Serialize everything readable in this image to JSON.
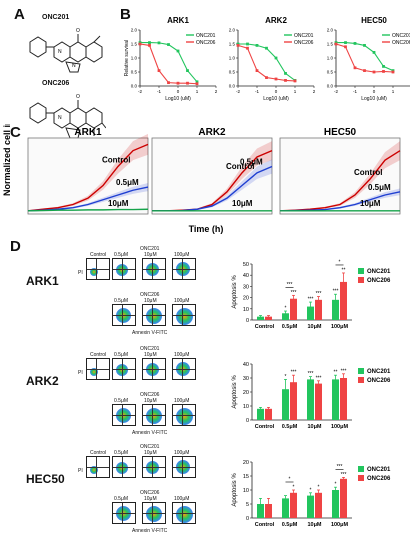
{
  "panel_letters": {
    "a": "A",
    "b": "B",
    "c": "C",
    "d": "D"
  },
  "compounds": {
    "c1": "ONC201",
    "c2": "ONC206"
  },
  "colors": {
    "onc201": "#22c55e",
    "onc206": "#ef4444",
    "control": "#cc0000",
    "dose05": "#1f3fd1",
    "dose10": "#16a34a"
  },
  "chart_data": [
    {
      "type": "line",
      "panel": "B",
      "title": "ARK1",
      "ylabel": "Relative survival",
      "xlabel": "Log10 (uM)",
      "xlim": [
        -2,
        2
      ],
      "ylim": [
        0,
        2
      ],
      "xticks": [
        "-2",
        "-1",
        "0",
        "1",
        "2"
      ],
      "yticks": [
        "0.0",
        "0.5",
        "1.0",
        "1.5",
        "2.0"
      ],
      "legend": [
        "ONC201",
        "ONC206"
      ],
      "series": [
        {
          "name": "ONC201",
          "x": [
            -2,
            -1.5,
            -1,
            -0.5,
            0,
            0.5,
            1
          ],
          "y": [
            1.55,
            1.55,
            1.54,
            1.48,
            1.25,
            0.55,
            0.15
          ]
        },
        {
          "name": "ONC206",
          "x": [
            -2,
            -1.5,
            -1,
            -0.5,
            0,
            0.5,
            1
          ],
          "y": [
            1.5,
            1.45,
            0.55,
            0.12,
            0.1,
            0.1,
            0.08
          ]
        }
      ]
    },
    {
      "type": "line",
      "panel": "B",
      "title": "ARK2",
      "ylabel": "",
      "xlabel": "Log10 (uM)",
      "xlim": [
        -2,
        2
      ],
      "ylim": [
        0,
        2
      ],
      "xticks": [
        "-2",
        "-1",
        "0",
        "1",
        "2"
      ],
      "yticks": [
        "0.0",
        "0.5",
        "1.0",
        "1.5",
        "2.0"
      ],
      "legend": [
        "ONC201",
        "ONC206"
      ],
      "series": [
        {
          "name": "ONC201",
          "x": [
            -2,
            -1.5,
            -1,
            -0.5,
            0,
            0.5,
            1
          ],
          "y": [
            1.5,
            1.5,
            1.45,
            1.35,
            1.0,
            0.45,
            0.2
          ]
        },
        {
          "name": "ONC206",
          "x": [
            -2,
            -1.5,
            -1,
            -0.5,
            0,
            0.5,
            1
          ],
          "y": [
            1.45,
            1.35,
            0.55,
            0.3,
            0.25,
            0.2,
            0.18
          ]
        }
      ]
    },
    {
      "type": "line",
      "panel": "B",
      "title": "HEC50",
      "ylabel": "",
      "xlabel": "Log10 (uM)",
      "xlim": [
        -2,
        2
      ],
      "ylim": [
        0,
        2
      ],
      "xticks": [
        "-2",
        "-1",
        "0",
        "1",
        "2"
      ],
      "yticks": [
        "0.0",
        "0.5",
        "1.0",
        "1.5",
        "2.0"
      ],
      "legend": [
        "ONC201",
        "ONC206"
      ],
      "series": [
        {
          "name": "ONC201",
          "x": [
            -2,
            -1.5,
            -1,
            -0.5,
            0,
            0.5,
            1
          ],
          "y": [
            1.55,
            1.55,
            1.52,
            1.45,
            1.2,
            0.7,
            0.55
          ]
        },
        {
          "name": "ONC206",
          "x": [
            -2,
            -1.5,
            -1,
            -0.5,
            0,
            0.5,
            1
          ],
          "y": [
            1.5,
            1.4,
            0.65,
            0.55,
            0.5,
            0.52,
            0.5
          ]
        }
      ]
    },
    {
      "type": "line",
      "panel": "C",
      "title": "ARK1",
      "ylabel": "Normalized cell index",
      "xlabel": "Time (h)",
      "series": [
        {
          "name": "Control",
          "x": [
            0,
            10,
            20,
            30,
            40,
            50,
            60,
            70,
            80
          ],
          "y": [
            0.1,
            0.15,
            0.2,
            0.3,
            0.5,
            0.9,
            1.5,
            2.0,
            2.2
          ]
        },
        {
          "name": "0.5μM",
          "x": [
            0,
            10,
            20,
            30,
            40,
            50,
            60,
            70,
            80
          ],
          "y": [
            0.1,
            0.12,
            0.15,
            0.2,
            0.3,
            0.45,
            0.6,
            0.75,
            0.85
          ]
        },
        {
          "name": "10μM",
          "x": [
            0,
            10,
            20,
            30,
            40,
            50,
            60,
            70,
            80
          ],
          "y": [
            0.1,
            0.11,
            0.12,
            0.12,
            0.13,
            0.13,
            0.14,
            0.14,
            0.15
          ]
        }
      ]
    },
    {
      "type": "line",
      "panel": "C",
      "title": "ARK2",
      "ylabel": "",
      "xlabel": "Time (h)",
      "series": [
        {
          "name": "Control",
          "x": [
            0,
            10,
            20,
            30,
            40,
            50,
            60,
            70,
            80
          ],
          "y": [
            0.1,
            0.1,
            0.12,
            0.15,
            0.3,
            0.7,
            1.3,
            1.8,
            2.0
          ]
        },
        {
          "name": "0.5μM",
          "x": [
            0,
            10,
            20,
            30,
            40,
            50,
            60,
            70,
            80
          ],
          "y": [
            0.1,
            0.1,
            0.11,
            0.15,
            0.25,
            0.5,
            0.9,
            1.3,
            1.5
          ]
        },
        {
          "name": "10μM",
          "x": [
            0,
            10,
            20,
            30,
            40,
            50,
            60,
            70,
            80
          ],
          "y": [
            0.1,
            0.1,
            0.1,
            0.1,
            0.1,
            0.1,
            0.1,
            0.1,
            0.1
          ]
        }
      ]
    },
    {
      "type": "line",
      "panel": "C",
      "title": "HEC50",
      "ylabel": "",
      "xlabel": "Time (h)",
      "series": [
        {
          "name": "Control",
          "x": [
            0,
            10,
            20,
            30,
            40,
            50,
            60,
            70,
            80
          ],
          "y": [
            0.1,
            0.12,
            0.15,
            0.2,
            0.3,
            0.6,
            1.1,
            1.7,
            2.0
          ]
        },
        {
          "name": "0.5μM",
          "x": [
            0,
            10,
            20,
            30,
            40,
            50,
            60,
            70,
            80
          ],
          "y": [
            0.1,
            0.11,
            0.12,
            0.14,
            0.2,
            0.3,
            0.45,
            0.6,
            0.7
          ]
        },
        {
          "name": "10μM",
          "x": [
            0,
            10,
            20,
            30,
            40,
            50,
            60,
            70,
            80
          ],
          "y": [
            0.1,
            0.1,
            0.1,
            0.1,
            0.1,
            0.1,
            0.1,
            0.1,
            0.1
          ]
        }
      ]
    },
    {
      "type": "bar",
      "panel": "D",
      "title": "ARK1",
      "ylabel": "Apoptosis %",
      "ylim": [
        0,
        50
      ],
      "yticks": [
        "0",
        "10",
        "20",
        "30",
        "40",
        "50"
      ],
      "categories": [
        "Control",
        "0.5μM",
        "10μM",
        "100μM"
      ],
      "legend": [
        "ONC201",
        "ONC206"
      ],
      "series": [
        {
          "name": "ONC201",
          "values": [
            3,
            6,
            12,
            18
          ],
          "errors": [
            1,
            2,
            4,
            5
          ]
        },
        {
          "name": "ONC206",
          "values": [
            3,
            19,
            18,
            34
          ],
          "errors": [
            1,
            3,
            3,
            8
          ]
        }
      ],
      "stars": [
        {
          "cat": 1,
          "ser": 0,
          "text": "*"
        },
        {
          "cat": 1,
          "ser": 1,
          "text": "***"
        },
        {
          "cat": 2,
          "ser": 0,
          "text": "***"
        },
        {
          "cat": 2,
          "ser": 1,
          "text": "***"
        },
        {
          "cat": 3,
          "ser": 0,
          "text": "***"
        },
        {
          "cat": 3,
          "ser": 1,
          "text": "**"
        }
      ],
      "brackets": [
        {
          "cat": 1,
          "text": "***"
        },
        {
          "cat": 3,
          "text": "*"
        }
      ]
    },
    {
      "type": "bar",
      "panel": "D",
      "title": "ARK2",
      "ylabel": "Apoptosis %",
      "ylim": [
        0,
        40
      ],
      "yticks": [
        "0",
        "10",
        "20",
        "30",
        "40"
      ],
      "categories": [
        "Control",
        "0.5μM",
        "10μM",
        "100μM"
      ],
      "legend": [
        "ONC201",
        "ONC206"
      ],
      "series": [
        {
          "name": "ONC201",
          "values": [
            8,
            22,
            29,
            29
          ],
          "errors": [
            1,
            7,
            2,
            3
          ]
        },
        {
          "name": "ONC206",
          "values": [
            8,
            27,
            26,
            30
          ],
          "errors": [
            1,
            5,
            2,
            3
          ]
        }
      ],
      "stars": [
        {
          "cat": 1,
          "ser": 0,
          "text": "*"
        },
        {
          "cat": 1,
          "ser": 1,
          "text": "***"
        },
        {
          "cat": 2,
          "ser": 0,
          "text": "***"
        },
        {
          "cat": 2,
          "ser": 1,
          "text": "***"
        },
        {
          "cat": 3,
          "ser": 0,
          "text": "**"
        },
        {
          "cat": 3,
          "ser": 1,
          "text": "***"
        }
      ],
      "brackets": []
    },
    {
      "type": "bar",
      "panel": "D",
      "title": "HEC50",
      "ylabel": "Apoptosis %",
      "ylim": [
        0,
        20
      ],
      "yticks": [
        "0",
        "5",
        "10",
        "15",
        "20"
      ],
      "categories": [
        "Control",
        "0.5μM",
        "10μM",
        "100μM"
      ],
      "legend": [
        "ONC201",
        "ONC206"
      ],
      "series": [
        {
          "name": "ONC201",
          "values": [
            5,
            7,
            8,
            10
          ],
          "errors": [
            2,
            1,
            1,
            1
          ]
        },
        {
          "name": "ONC206",
          "values": [
            5,
            9,
            9,
            14
          ],
          "errors": [
            2,
            1,
            1,
            0.5
          ]
        }
      ],
      "stars": [
        {
          "cat": 1,
          "ser": 1,
          "text": "*"
        },
        {
          "cat": 2,
          "ser": 0,
          "text": "*"
        },
        {
          "cat": 2,
          "ser": 1,
          "text": "*"
        },
        {
          "cat": 3,
          "ser": 0,
          "text": "*"
        },
        {
          "cat": 3,
          "ser": 1,
          "text": "***"
        }
      ],
      "brackets": [
        {
          "cat": 1,
          "text": "*"
        },
        {
          "cat": 3,
          "text": "***"
        }
      ]
    }
  ],
  "panel_c": {
    "titles": [
      "ARK1",
      "ARK2",
      "HEC50"
    ],
    "labels": {
      "control": "Control",
      "dose05": "0.5μM",
      "dose10": "10μM"
    },
    "ylabel": "Normalized cell index",
    "xlabel": "Time (h)"
  },
  "facs": {
    "rows": [
      {
        "label": "ARK1",
        "color": "#1a1a1a"
      },
      {
        "label": "ARK2",
        "color": "#1a1a1a"
      },
      {
        "label": "HEC50",
        "color": "#1a1a1a"
      }
    ],
    "control": "Control",
    "doses": [
      "0.5μM",
      "10μM",
      "100μM"
    ],
    "xlabel": "Annexin V-FITC",
    "ylabel": "PI",
    "group1": "ONC201",
    "group2": "ONC206"
  }
}
